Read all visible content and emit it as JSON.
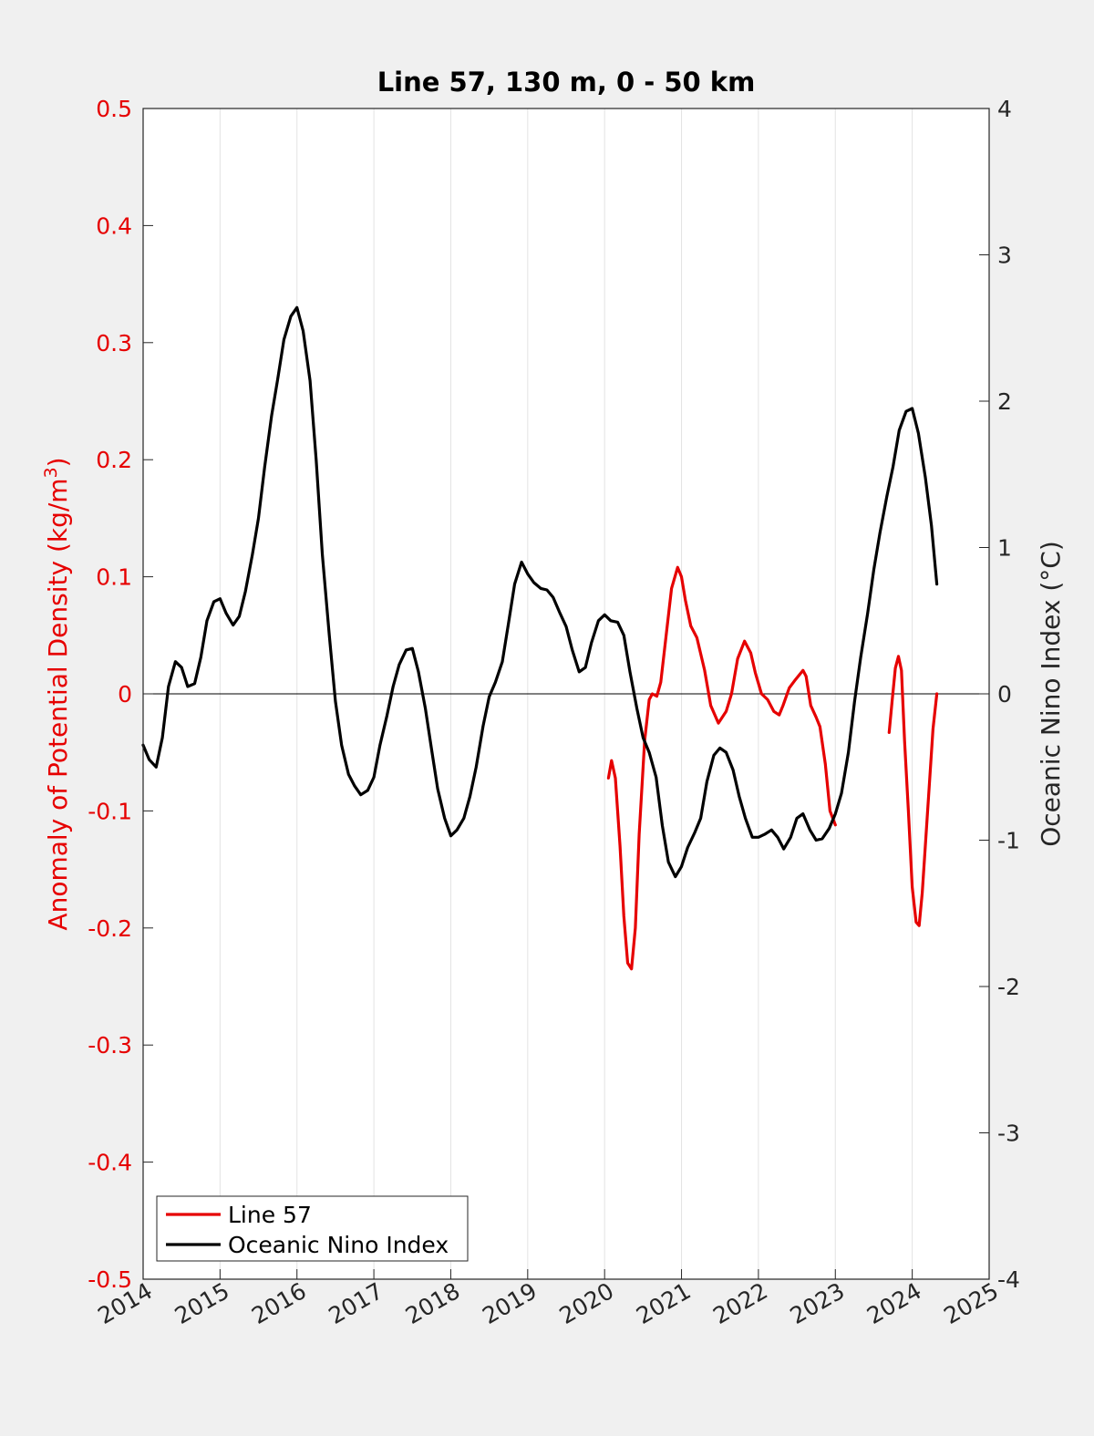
{
  "chart_data": {
    "type": "line",
    "title": "Line 57, 130 m, 0 - 50 km",
    "ylabel_left": "Anomaly of Potential Density (kg/m",
    "ylabel_left_sup": "3",
    "ylabel_left_end": ")",
    "ylabel_right": "Oceanic Nino Index (°C)",
    "xlim": [
      2014,
      2025
    ],
    "ylim_left": [
      -0.5,
      0.5
    ],
    "ylim_right": [
      -4,
      4
    ],
    "x_ticks": [
      2014,
      2015,
      2016,
      2017,
      2018,
      2019,
      2020,
      2021,
      2022,
      2023,
      2024,
      2025
    ],
    "x_tick_labels": [
      "2014",
      "2015",
      "2016",
      "2017",
      "2018",
      "2019",
      "2020",
      "2021",
      "2022",
      "2023",
      "2024",
      "2025"
    ],
    "y_left_ticks": [
      -0.5,
      -0.4,
      -0.3,
      -0.2,
      -0.1,
      0,
      0.1,
      0.2,
      0.3,
      0.4,
      0.5
    ],
    "y_left_tick_labels": [
      "-0.5",
      "-0.4",
      "-0.3",
      "-0.2",
      "-0.1",
      "0",
      "0.1",
      "0.2",
      "0.3",
      "0.4",
      "0.5"
    ],
    "y_right_ticks": [
      -4,
      -3,
      -2,
      -1,
      0,
      1,
      2,
      3,
      4
    ],
    "y_right_tick_labels": [
      "-4",
      "-3",
      "-2",
      "-1",
      "0",
      "1",
      "2",
      "3",
      "4"
    ],
    "grid": "vertical",
    "legend_position": "bottom-left",
    "zero_line": true,
    "series": [
      {
        "name": "Line 57",
        "axis": "left",
        "color": "#e60000",
        "segments": [
          [
            [
              2020.05,
              -0.072
            ],
            [
              2020.09,
              -0.057
            ],
            [
              2020.14,
              -0.072
            ],
            [
              2020.2,
              -0.13
            ],
            [
              2020.25,
              -0.19
            ],
            [
              2020.3,
              -0.23
            ],
            [
              2020.35,
              -0.235
            ],
            [
              2020.4,
              -0.2
            ],
            [
              2020.45,
              -0.12
            ],
            [
              2020.52,
              -0.04
            ],
            [
              2020.58,
              -0.005
            ],
            [
              2020.62,
              0.0
            ],
            [
              2020.68,
              -0.002
            ],
            [
              2020.73,
              0.01
            ],
            [
              2020.8,
              0.05
            ],
            [
              2020.87,
              0.09
            ],
            [
              2020.95,
              0.108
            ],
            [
              2021.0,
              0.1
            ],
            [
              2021.05,
              0.08
            ],
            [
              2021.12,
              0.058
            ],
            [
              2021.2,
              0.048
            ],
            [
              2021.3,
              0.02
            ],
            [
              2021.38,
              -0.01
            ],
            [
              2021.48,
              -0.025
            ],
            [
              2021.58,
              -0.015
            ],
            [
              2021.65,
              0.0
            ],
            [
              2021.73,
              0.03
            ],
            [
              2021.82,
              0.045
            ],
            [
              2021.9,
              0.035
            ],
            [
              2021.96,
              0.018
            ],
            [
              2022.04,
              0.0
            ],
            [
              2022.12,
              -0.005
            ],
            [
              2022.2,
              -0.015
            ],
            [
              2022.27,
              -0.018
            ],
            [
              2022.32,
              -0.01
            ],
            [
              2022.4,
              0.005
            ],
            [
              2022.48,
              0.012
            ],
            [
              2022.58,
              0.02
            ],
            [
              2022.62,
              0.015
            ],
            [
              2022.68,
              -0.01
            ],
            [
              2022.75,
              -0.02
            ],
            [
              2022.8,
              -0.028
            ],
            [
              2022.87,
              -0.06
            ],
            [
              2022.93,
              -0.1
            ],
            [
              2023.0,
              -0.112
            ]
          ],
          [
            [
              2023.7,
              -0.033
            ],
            [
              2023.74,
              -0.005
            ],
            [
              2023.78,
              0.022
            ],
            [
              2023.82,
              0.032
            ],
            [
              2023.86,
              0.02
            ],
            [
              2023.9,
              -0.04
            ],
            [
              2023.95,
              -0.1
            ],
            [
              2024.0,
              -0.165
            ],
            [
              2024.05,
              -0.195
            ],
            [
              2024.09,
              -0.198
            ],
            [
              2024.13,
              -0.17
            ],
            [
              2024.2,
              -0.1
            ],
            [
              2024.27,
              -0.03
            ],
            [
              2024.32,
              0.0
            ]
          ]
        ]
      },
      {
        "name": "Oceanic Nino Index",
        "axis": "right",
        "color": "#000000",
        "segments": [
          [
            [
              2014.0,
              -0.35
            ],
            [
              2014.08,
              -0.45
            ],
            [
              2014.17,
              -0.5
            ],
            [
              2014.25,
              -0.3
            ],
            [
              2014.33,
              0.05
            ],
            [
              2014.42,
              0.22
            ],
            [
              2014.5,
              0.18
            ],
            [
              2014.58,
              0.05
            ],
            [
              2014.67,
              0.07
            ],
            [
              2014.75,
              0.25
            ],
            [
              2014.83,
              0.5
            ],
            [
              2014.92,
              0.63
            ],
            [
              2015.0,
              0.65
            ],
            [
              2015.08,
              0.55
            ],
            [
              2015.17,
              0.47
            ],
            [
              2015.25,
              0.53
            ],
            [
              2015.33,
              0.7
            ],
            [
              2015.42,
              0.95
            ],
            [
              2015.5,
              1.2
            ],
            [
              2015.58,
              1.55
            ],
            [
              2015.67,
              1.9
            ],
            [
              2015.75,
              2.15
            ],
            [
              2015.83,
              2.42
            ],
            [
              2015.92,
              2.58
            ],
            [
              2016.0,
              2.64
            ],
            [
              2016.08,
              2.48
            ],
            [
              2016.17,
              2.14
            ],
            [
              2016.25,
              1.6
            ],
            [
              2016.33,
              0.95
            ],
            [
              2016.42,
              0.4
            ],
            [
              2016.5,
              -0.05
            ],
            [
              2016.58,
              -0.35
            ],
            [
              2016.67,
              -0.55
            ],
            [
              2016.75,
              -0.63
            ],
            [
              2016.83,
              -0.69
            ],
            [
              2016.92,
              -0.66
            ],
            [
              2017.0,
              -0.57
            ],
            [
              2017.08,
              -0.35
            ],
            [
              2017.17,
              -0.15
            ],
            [
              2017.25,
              0.05
            ],
            [
              2017.33,
              0.2
            ],
            [
              2017.42,
              0.3
            ],
            [
              2017.5,
              0.31
            ],
            [
              2017.58,
              0.15
            ],
            [
              2017.67,
              -0.1
            ],
            [
              2017.75,
              -0.38
            ],
            [
              2017.83,
              -0.65
            ],
            [
              2017.92,
              -0.85
            ],
            [
              2018.0,
              -0.97
            ],
            [
              2018.08,
              -0.93
            ],
            [
              2018.17,
              -0.85
            ],
            [
              2018.25,
              -0.7
            ],
            [
              2018.33,
              -0.5
            ],
            [
              2018.42,
              -0.22
            ],
            [
              2018.5,
              -0.02
            ],
            [
              2018.58,
              0.08
            ],
            [
              2018.67,
              0.22
            ],
            [
              2018.75,
              0.48
            ],
            [
              2018.83,
              0.75
            ],
            [
              2018.92,
              0.9
            ],
            [
              2019.0,
              0.82
            ],
            [
              2019.08,
              0.76
            ],
            [
              2019.17,
              0.72
            ],
            [
              2019.25,
              0.71
            ],
            [
              2019.33,
              0.66
            ],
            [
              2019.42,
              0.55
            ],
            [
              2019.5,
              0.46
            ],
            [
              2019.58,
              0.3
            ],
            [
              2019.67,
              0.15
            ],
            [
              2019.75,
              0.18
            ],
            [
              2019.83,
              0.35
            ],
            [
              2019.92,
              0.5
            ],
            [
              2020.0,
              0.54
            ],
            [
              2020.08,
              0.5
            ],
            [
              2020.17,
              0.49
            ],
            [
              2020.25,
              0.4
            ],
            [
              2020.33,
              0.15
            ],
            [
              2020.42,
              -0.1
            ],
            [
              2020.5,
              -0.3
            ],
            [
              2020.58,
              -0.4
            ],
            [
              2020.67,
              -0.57
            ],
            [
              2020.75,
              -0.9
            ],
            [
              2020.83,
              -1.15
            ],
            [
              2020.92,
              -1.25
            ],
            [
              2021.0,
              -1.18
            ],
            [
              2021.08,
              -1.05
            ],
            [
              2021.17,
              -0.95
            ],
            [
              2021.25,
              -0.85
            ],
            [
              2021.33,
              -0.6
            ],
            [
              2021.42,
              -0.42
            ],
            [
              2021.5,
              -0.37
            ],
            [
              2021.58,
              -0.4
            ],
            [
              2021.67,
              -0.52
            ],
            [
              2021.75,
              -0.7
            ],
            [
              2021.83,
              -0.85
            ],
            [
              2021.92,
              -0.98
            ],
            [
              2022.0,
              -0.98
            ],
            [
              2022.08,
              -0.96
            ],
            [
              2022.17,
              -0.93
            ],
            [
              2022.25,
              -0.98
            ],
            [
              2022.33,
              -1.06
            ],
            [
              2022.42,
              -0.98
            ],
            [
              2022.5,
              -0.85
            ],
            [
              2022.58,
              -0.82
            ],
            [
              2022.67,
              -0.93
            ],
            [
              2022.75,
              -1.0
            ],
            [
              2022.83,
              -0.99
            ],
            [
              2022.92,
              -0.92
            ],
            [
              2023.0,
              -0.82
            ],
            [
              2023.08,
              -0.68
            ],
            [
              2023.17,
              -0.4
            ],
            [
              2023.25,
              -0.05
            ],
            [
              2023.33,
              0.25
            ],
            [
              2023.42,
              0.55
            ],
            [
              2023.5,
              0.85
            ],
            [
              2023.58,
              1.1
            ],
            [
              2023.67,
              1.35
            ],
            [
              2023.75,
              1.55
            ],
            [
              2023.83,
              1.8
            ],
            [
              2023.92,
              1.93
            ],
            [
              2024.0,
              1.95
            ],
            [
              2024.08,
              1.78
            ],
            [
              2024.17,
              1.48
            ],
            [
              2024.25,
              1.15
            ],
            [
              2024.32,
              0.75
            ]
          ]
        ]
      }
    ]
  }
}
